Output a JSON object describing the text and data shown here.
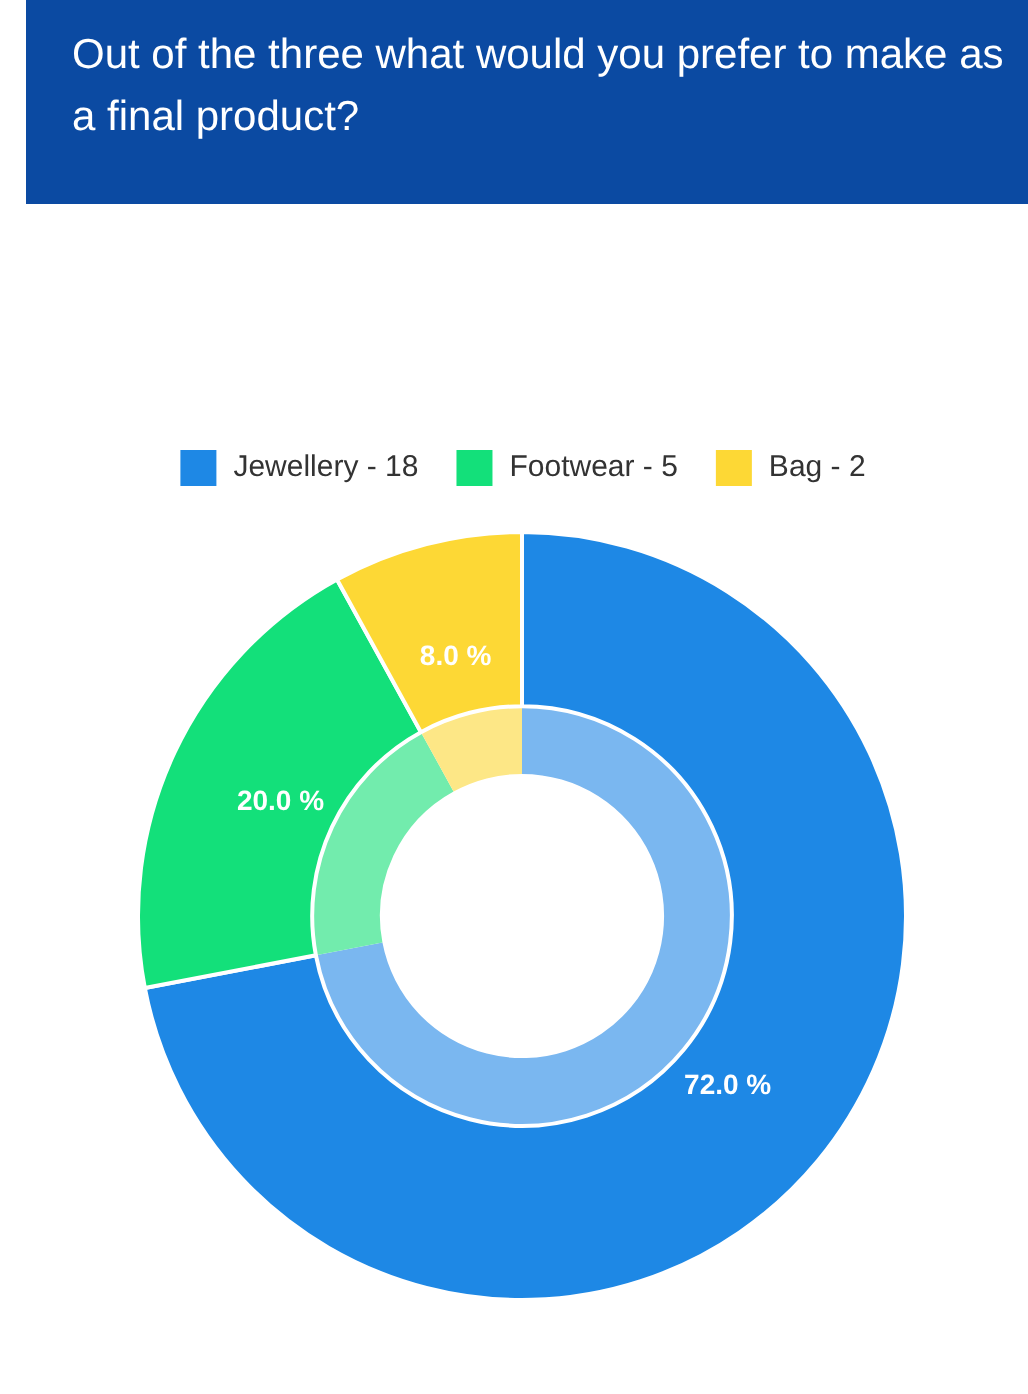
{
  "chart_data": {
    "type": "donut",
    "title": "Out of the three what would you prefer to make as a final product?",
    "categories": [
      "Jewellery - 18",
      "Footwear - 5",
      "Bag - 2"
    ],
    "series": [
      {
        "colors": [
          "#1e88e5",
          "#13e07a",
          "#fdd835"
        ],
        "values": [
          72,
          20,
          8
        ],
        "value_labels": [
          "72.0 %",
          "20.0 %",
          "8.0 %"
        ]
      },
      {
        "colors": [
          "#7ab7f0",
          "#72ecad",
          "#fde786"
        ],
        "values": [
          72,
          20,
          8
        ]
      }
    ],
    "legend": "top"
  }
}
